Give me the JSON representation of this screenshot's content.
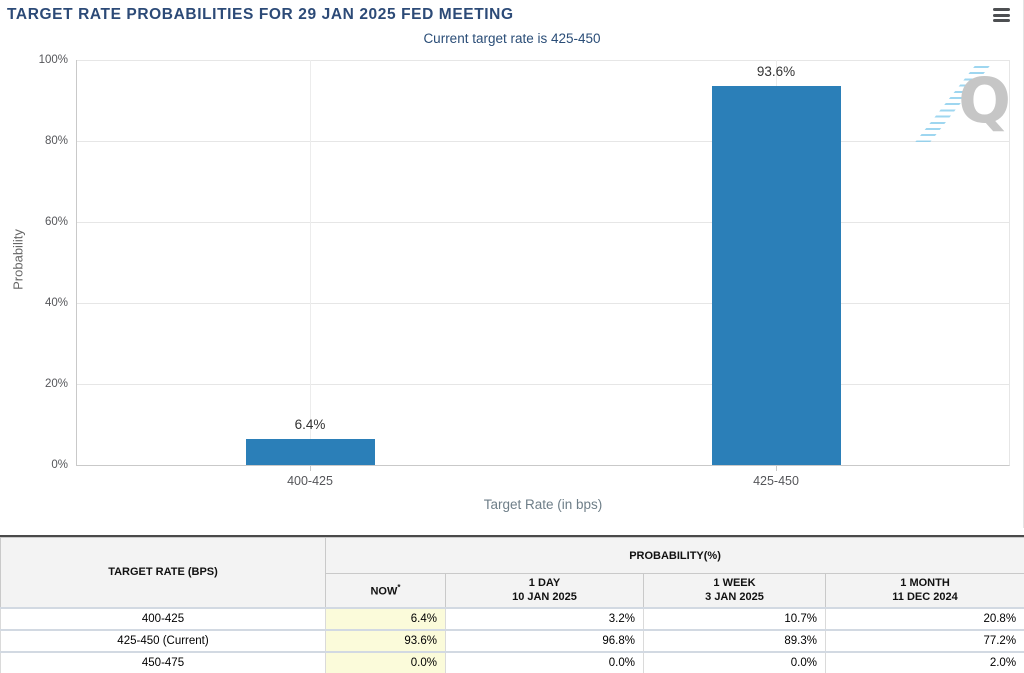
{
  "header": {
    "title": "TARGET RATE PROBABILITIES FOR 29 JAN 2025 FED MEETING",
    "menu_icon": "hamburger-menu"
  },
  "chart": {
    "subtitle": "Current target rate is 425-450",
    "ylabel": "Probability",
    "xlabel": "Target Rate (in bps)",
    "yticks": [
      "100%",
      "80%",
      "60%",
      "40%",
      "20%",
      "0%"
    ],
    "watermark_letter": "Q",
    "title_color": "#2c4a77",
    "bar_color": "#2b7fb8"
  },
  "chart_data": {
    "type": "bar",
    "title": "TARGET RATE PROBABILITIES FOR 29 JAN 2025 FED MEETING",
    "subtitle": "Current target rate is 425-450",
    "categories": [
      "400-425",
      "425-450"
    ],
    "values": [
      6.4,
      93.6
    ],
    "point_labels": [
      "6.4%",
      "93.6%"
    ],
    "xlabel": "Target Rate (in bps)",
    "ylabel": "Probability",
    "ylim": [
      0,
      100
    ],
    "ytick_step": 20,
    "grid": true,
    "legend": false,
    "bar_color": "#2b7fb8"
  },
  "table": {
    "rate_header": "TARGET RATE (BPS)",
    "group_header": "PROBABILITY(%)",
    "now_asterisk": "*",
    "columns": [
      {
        "label": "NOW",
        "sublabel": ""
      },
      {
        "label": "1 DAY",
        "sublabel": "10 JAN 2025"
      },
      {
        "label": "1 WEEK",
        "sublabel": "3 JAN 2025"
      },
      {
        "label": "1 MONTH",
        "sublabel": "11 DEC 2024"
      }
    ],
    "rows": [
      {
        "rate": "400-425",
        "now": "6.4%",
        "day1": "3.2%",
        "week1": "10.7%",
        "month1": "20.8%"
      },
      {
        "rate": "425-450 (Current)",
        "now": "93.6%",
        "day1": "96.8%",
        "week1": "89.3%",
        "month1": "77.2%"
      },
      {
        "rate": "450-475",
        "now": "0.0%",
        "day1": "0.0%",
        "week1": "0.0%",
        "month1": "2.0%"
      }
    ],
    "now_highlight_color": "#fbfbda"
  }
}
